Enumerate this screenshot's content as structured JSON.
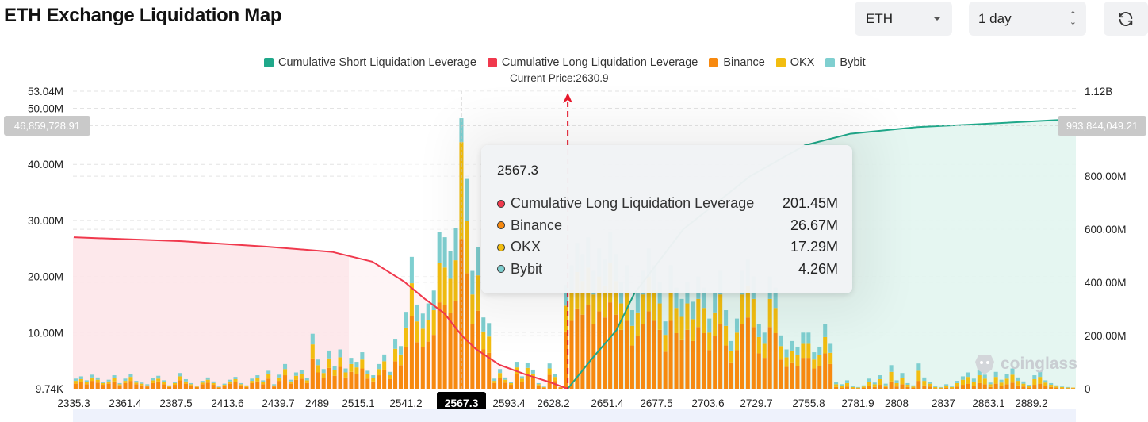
{
  "header": {
    "title": "ETH Exchange Liquidation Map",
    "symbol_select": "ETH",
    "range_select": "1 day",
    "refresh_icon": "refresh-icon"
  },
  "legend": [
    {
      "label": "Cumulative Short Liquidation Leverage",
      "color": "#1fa88a"
    },
    {
      "label": "Cumulative Long Liquidation Leverage",
      "color": "#f0394d"
    },
    {
      "label": "Binance",
      "color": "#f7890f"
    },
    {
      "label": "OKX",
      "color": "#f2bd10"
    },
    {
      "label": "Bybit",
      "color": "#7fcfd0"
    }
  ],
  "current_price_label": "Current Price:2630.9",
  "crosshair": {
    "left_value": "46,859,728.91",
    "right_value": "993,844,049.21",
    "x_label": "2567.3"
  },
  "tooltip": {
    "title": "2567.3",
    "rows": [
      {
        "label": "Cumulative Long Liquidation Leverage",
        "value": "201.45M",
        "color": "#f0394d"
      },
      {
        "label": "Binance",
        "value": "26.67M",
        "color": "#f7890f"
      },
      {
        "label": "OKX",
        "value": "17.29M",
        "color": "#f2bd10"
      },
      {
        "label": "Bybit",
        "value": "4.26M",
        "color": "#7fcfd0"
      }
    ]
  },
  "watermark": "coinglass",
  "chart_data": {
    "type": "bar",
    "current_price": 2630.9,
    "highlight_index": 70,
    "x_tick_labels": [
      "2335.3",
      "2361.4",
      "2387.5",
      "2413.6",
      "2439.7",
      "2489",
      "2515.1",
      "2541.2",
      "2567.3",
      "2593.4",
      "2628.2",
      "2651.4",
      "2677.5",
      "2703.6",
      "2729.7",
      "2755.8",
      "2781.9",
      "2808",
      "2837",
      "2863.1",
      "2889.2"
    ],
    "left_axis": {
      "ticks": [
        "9.74K",
        "10.00M",
        "20.00M",
        "30.00M",
        "40.00M",
        "50.00M",
        "53.04M"
      ],
      "values": [
        0.00974,
        10,
        20,
        30,
        40,
        50,
        53.04
      ],
      "ylim": [
        0,
        53.04
      ],
      "unit": "M"
    },
    "right_axis": {
      "ticks": [
        "0",
        "200.00M",
        "400.00M",
        "600.00M",
        "800.00M",
        "1.12B"
      ],
      "values": [
        0,
        200,
        400,
        600,
        800,
        1120
      ],
      "ylim": [
        0,
        1120
      ],
      "unit": "M"
    },
    "bar_series": [
      "Binance",
      "OKX",
      "Bybit"
    ],
    "bars": [
      [
        0.9,
        0.5,
        0.4
      ],
      [
        1.2,
        0.5,
        0.5
      ],
      [
        0.8,
        0.4,
        0.3
      ],
      [
        1.4,
        0.6,
        0.5
      ],
      [
        1.1,
        0.5,
        0.4
      ],
      [
        0.7,
        0.3,
        0.2
      ],
      [
        0.9,
        0.4,
        0.3
      ],
      [
        1.3,
        0.6,
        0.5
      ],
      [
        0.6,
        0.2,
        0.2
      ],
      [
        1.0,
        0.4,
        0.4
      ],
      [
        1.4,
        0.7,
        0.5
      ],
      [
        0.8,
        0.3,
        0.3
      ],
      [
        0.6,
        0.3,
        0.2
      ],
      [
        0.4,
        0.2,
        0.2
      ],
      [
        1.0,
        0.5,
        0.4
      ],
      [
        1.3,
        0.5,
        0.5
      ],
      [
        0.8,
        0.4,
        0.3
      ],
      [
        0.3,
        0.2,
        0.1
      ],
      [
        0.7,
        0.3,
        0.2
      ],
      [
        1.5,
        0.7,
        0.6
      ],
      [
        0.9,
        0.4,
        0.4
      ],
      [
        0.6,
        0.2,
        0.2
      ],
      [
        0.3,
        0.1,
        0.1
      ],
      [
        0.8,
        0.3,
        0.3
      ],
      [
        1.1,
        0.5,
        0.4
      ],
      [
        0.7,
        0.3,
        0.3
      ],
      [
        0.2,
        0.1,
        0.1
      ],
      [
        0.5,
        0.2,
        0.2
      ],
      [
        0.9,
        0.4,
        0.3
      ],
      [
        1.2,
        0.5,
        0.4
      ],
      [
        0.6,
        0.2,
        0.2
      ],
      [
        0.3,
        0.2,
        0.1
      ],
      [
        1.0,
        0.4,
        0.4
      ],
      [
        1.3,
        0.6,
        0.5
      ],
      [
        0.8,
        0.4,
        0.3
      ],
      [
        1.8,
        0.8,
        0.6
      ],
      [
        0.4,
        0.2,
        0.2
      ],
      [
        1.4,
        0.6,
        0.5
      ],
      [
        2.4,
        1.1,
        0.9
      ],
      [
        0.9,
        0.4,
        0.3
      ],
      [
        1.6,
        0.7,
        0.6
      ],
      [
        1.8,
        0.8,
        0.7
      ],
      [
        1.0,
        0.5,
        0.4
      ],
      [
        5.4,
        2.5,
        1.9
      ],
      [
        2.9,
        1.3,
        1.0
      ],
      [
        1.9,
        0.9,
        0.7
      ],
      [
        3.7,
        1.7,
        1.4
      ],
      [
        2.3,
        1.0,
        0.8
      ],
      [
        3.9,
        1.7,
        1.4
      ],
      [
        2.0,
        0.9,
        0.7
      ],
      [
        3.0,
        1.4,
        1.1
      ],
      [
        2.6,
        1.2,
        1.0
      ],
      [
        3.6,
        1.6,
        1.3
      ],
      [
        1.8,
        0.8,
        0.6
      ],
      [
        1.3,
        0.6,
        0.5
      ],
      [
        2.4,
        1.1,
        0.9
      ],
      [
        3.4,
        1.5,
        1.2
      ],
      [
        1.7,
        0.7,
        0.6
      ],
      [
        4.9,
        2.2,
        1.8
      ],
      [
        4.2,
        1.9,
        1.5
      ],
      [
        7.5,
        3.4,
        2.8
      ],
      [
        12.9,
        5.9,
        4.7
      ],
      [
        8.3,
        3.7,
        3.0
      ],
      [
        7.4,
        3.3,
        2.7
      ],
      [
        8.4,
        3.8,
        3.0
      ],
      [
        9.6,
        4.4,
        3.5
      ],
      [
        15.4,
        7.0,
        5.6
      ],
      [
        14.9,
        6.7,
        5.4
      ],
      [
        13.5,
        6.1,
        4.9
      ],
      [
        15.7,
        7.2,
        5.7
      ],
      [
        26.67,
        17.29,
        4.26
      ],
      [
        20.6,
        9.3,
        7.5
      ],
      [
        11.6,
        5.2,
        4.2
      ],
      [
        13.9,
        6.3,
        5.1
      ],
      [
        7.0,
        3.2,
        2.5
      ],
      [
        6.4,
        2.9,
        2.4
      ],
      [
        1.0,
        0.4,
        0.4
      ],
      [
        1.9,
        0.9,
        0.7
      ],
      [
        1.1,
        0.5,
        0.4
      ],
      [
        0.7,
        0.3,
        0.2
      ],
      [
        2.6,
        1.2,
        1.0
      ],
      [
        1.2,
        0.6,
        0.4
      ],
      [
        2.5,
        1.2,
        0.9
      ],
      [
        1.9,
        0.8,
        0.7
      ],
      [
        0.6,
        0.2,
        0.2
      ],
      [
        0.2,
        0.1,
        0.1
      ],
      [
        2.5,
        1.1,
        0.9
      ],
      [
        1.4,
        0.7,
        0.5
      ],
      [
        0.2,
        0.1,
        0
      ],
      [
        10.2,
        4.6,
        3.7
      ],
      [
        12.1,
        5.5,
        4.4
      ],
      [
        14.3,
        6.5,
        5.2
      ],
      [
        13.2,
        6.0,
        4.8
      ],
      [
        14.9,
        6.7,
        5.4
      ],
      [
        11.6,
        5.2,
        4.2
      ],
      [
        13.8,
        6.2,
        5.0
      ],
      [
        12.7,
        5.7,
        4.6
      ],
      [
        15.4,
        7.0,
        5.6
      ],
      [
        13.2,
        6.0,
        4.8
      ],
      [
        10.5,
        4.7,
        3.8
      ],
      [
        12.1,
        5.5,
        4.4
      ],
      [
        7.7,
        3.5,
        2.8
      ],
      [
        9.4,
        4.2,
        3.4
      ],
      [
        11.6,
        5.2,
        4.2
      ],
      [
        13.8,
        6.2,
        5.0
      ],
      [
        12.1,
        5.5,
        4.4
      ],
      [
        10.5,
        4.7,
        3.8
      ],
      [
        6.6,
        3.0,
        2.4
      ],
      [
        12.1,
        5.5,
        4.4
      ],
      [
        9.9,
        4.5,
        3.6
      ],
      [
        8.8,
        4.0,
        3.2
      ],
      [
        10.5,
        4.7,
        3.8
      ],
      [
        8.5,
        3.9,
        3.1
      ],
      [
        11.0,
        5.0,
        4.0
      ],
      [
        9.9,
        4.5,
        3.6
      ],
      [
        6.9,
        3.1,
        2.5
      ],
      [
        9.4,
        4.2,
        3.4
      ],
      [
        11.6,
        5.2,
        4.2
      ],
      [
        7.7,
        3.5,
        2.8
      ],
      [
        4.7,
        2.1,
        1.7
      ],
      [
        6.9,
        3.1,
        2.5
      ],
      [
        11.6,
        5.2,
        4.2
      ],
      [
        12.7,
        5.7,
        4.6
      ],
      [
        11.0,
        5.0,
        4.0
      ],
      [
        6.3,
        2.9,
        2.3
      ],
      [
        5.5,
        2.5,
        2.0
      ],
      [
        11.0,
        5.0,
        4.0
      ],
      [
        9.9,
        4.5,
        3.6
      ],
      [
        5.2,
        2.4,
        1.9
      ],
      [
        3.9,
        1.7,
        1.4
      ],
      [
        4.7,
        2.1,
        1.7
      ],
      [
        4.1,
        1.9,
        1.5
      ],
      [
        5.5,
        2.5,
        2.0
      ],
      [
        5.5,
        2.5,
        2.0
      ],
      [
        3.6,
        1.6,
        1.3
      ],
      [
        4.1,
        1.9,
        1.5
      ],
      [
        6.3,
        2.9,
        2.3
      ],
      [
        4.4,
        2.0,
        1.6
      ],
      [
        0.3,
        0.5,
        0.4
      ],
      [
        0.2,
        0.3,
        0.3
      ],
      [
        0.4,
        0.6,
        0.5
      ],
      [
        0.1,
        0.2,
        0.2
      ],
      [
        0.1,
        0.1,
        0.1
      ],
      [
        0.2,
        0.2,
        0.2
      ],
      [
        0.5,
        0.7,
        0.6
      ],
      [
        0.3,
        0.5,
        0.3
      ],
      [
        0.7,
        1.0,
        0.7
      ],
      [
        0.3,
        0.3,
        0.3
      ],
      [
        1.3,
        1.7,
        1.2
      ],
      [
        0.4,
        0.6,
        0.5
      ],
      [
        0.8,
        1.1,
        0.9
      ],
      [
        0.3,
        0.4,
        0.3
      ],
      [
        0.2,
        0.2,
        0.2
      ],
      [
        1.4,
        1.8,
        1.3
      ],
      [
        0.6,
        0.8,
        0.6
      ],
      [
        0.4,
        0.5,
        0.3
      ],
      [
        0.1,
        0.2,
        0.2
      ],
      [
        0.1,
        0.1,
        0.1
      ],
      [
        0.2,
        0.3,
        0.3
      ],
      [
        0.1,
        0.2,
        0.1
      ],
      [
        0.4,
        0.6,
        0.4
      ],
      [
        0.7,
        0.9,
        0.6
      ],
      [
        0.9,
        1.2,
        0.8
      ],
      [
        0.5,
        0.7,
        0.6
      ],
      [
        1.0,
        1.4,
        1.0
      ],
      [
        0.8,
        1.0,
        0.7
      ],
      [
        0.3,
        0.5,
        0.3
      ],
      [
        0.9,
        1.2,
        0.9
      ],
      [
        0.5,
        0.6,
        0.5
      ],
      [
        0.8,
        1.0,
        0.8
      ],
      [
        1.1,
        1.4,
        1.1
      ],
      [
        0.6,
        0.8,
        0.6
      ],
      [
        0.4,
        0.5,
        0.4
      ],
      [
        0.2,
        0.3,
        0.2
      ],
      [
        0.7,
        1.0,
        0.7
      ],
      [
        0.9,
        1.2,
        1.0
      ],
      [
        0.5,
        0.6,
        0.4
      ],
      [
        0.3,
        0.4,
        0.3
      ],
      [
        0.2,
        0.2,
        0.2
      ],
      [
        0.1,
        0.2,
        0.1
      ],
      [
        0.1,
        0.1,
        0.1
      ],
      [
        0.1,
        0.1,
        0
      ]
    ],
    "lines": [
      {
        "name": "Cumulative Long Liquidation Leverage",
        "axis": "right",
        "points": [
          [
            2335.3,
            570
          ],
          [
            2400,
            555
          ],
          [
            2450,
            535
          ],
          [
            2490,
            515
          ],
          [
            2514,
            478
          ],
          [
            2533,
            403
          ],
          [
            2545,
            340
          ],
          [
            2557,
            284
          ],
          [
            2567.3,
            201.45
          ],
          [
            2576,
            149
          ],
          [
            2590,
            90
          ],
          [
            2605,
            55
          ],
          [
            2620,
            25
          ],
          [
            2630.9,
            0
          ]
        ]
      },
      {
        "name": "Cumulative Short Liquidation Leverage",
        "axis": "right",
        "points": [
          [
            2630.9,
            0
          ],
          [
            2645,
            110
          ],
          [
            2660,
            220
          ],
          [
            2670.7,
            358
          ],
          [
            2700,
            600
          ],
          [
            2740,
            800
          ],
          [
            2772.7,
            916
          ],
          [
            2800,
            960
          ],
          [
            2840,
            985
          ],
          [
            2870,
            994
          ],
          [
            2935,
            1015
          ]
        ]
      }
    ]
  }
}
